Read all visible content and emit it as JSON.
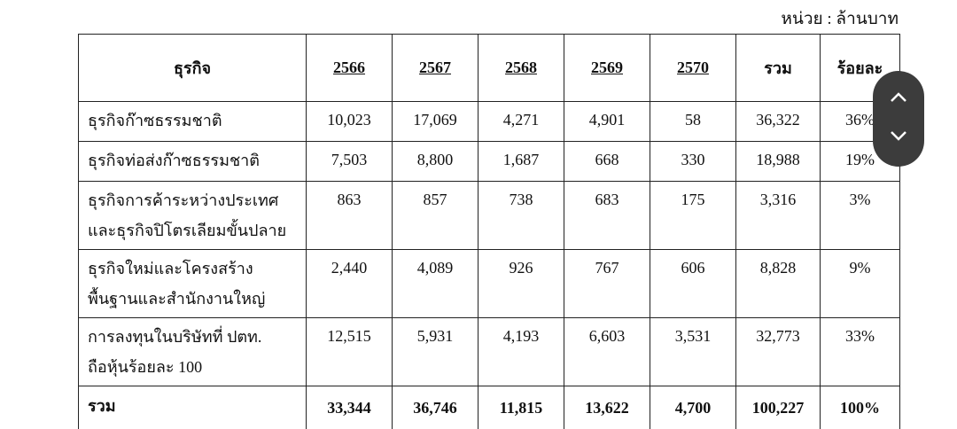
{
  "unit_note": "หน่วย : ล้านบาท",
  "table": {
    "header": [
      "ธุรกิจ",
      "2566",
      "2567",
      "2568",
      "2569",
      "2570",
      "รวม",
      "ร้อยละ"
    ],
    "rows": [
      {
        "label": [
          "ธุรกิจก๊าซธรรมชาติ"
        ],
        "cells": [
          "10,023",
          "17,069",
          "4,271",
          "4,901",
          "58",
          "36,322",
          "36%"
        ]
      },
      {
        "label": [
          "ธุรกิจท่อส่งก๊าซธรรมชาติ"
        ],
        "cells": [
          "7,503",
          "8,800",
          "1,687",
          "668",
          "330",
          "18,988",
          "19%"
        ]
      },
      {
        "label": [
          "ธุรกิจการค้าระหว่างประเทศ",
          "และธุรกิจปิโตรเลียมขั้นปลาย"
        ],
        "cells": [
          "863",
          "857",
          "738",
          "683",
          "175",
          "3,316",
          "3%"
        ]
      },
      {
        "label": [
          "ธุรกิจใหม่และโครงสร้าง",
          "พื้นฐานและสำนักงานใหญ่"
        ],
        "cells": [
          "2,440",
          "4,089",
          "926",
          "767",
          "606",
          "8,828",
          "9%"
        ]
      },
      {
        "label": [
          "การลงทุนในบริษัทที่ ปตท.",
          "ถือหุ้นร้อยละ 100"
        ],
        "cells": [
          "12,515",
          "5,931",
          "4,193",
          "6,603",
          "3,531",
          "32,773",
          "33%"
        ]
      }
    ],
    "total": {
      "label": "รวม",
      "cells": [
        "33,344",
        "36,746",
        "11,815",
        "13,622",
        "4,700",
        "100,227",
        "100%"
      ]
    }
  }
}
